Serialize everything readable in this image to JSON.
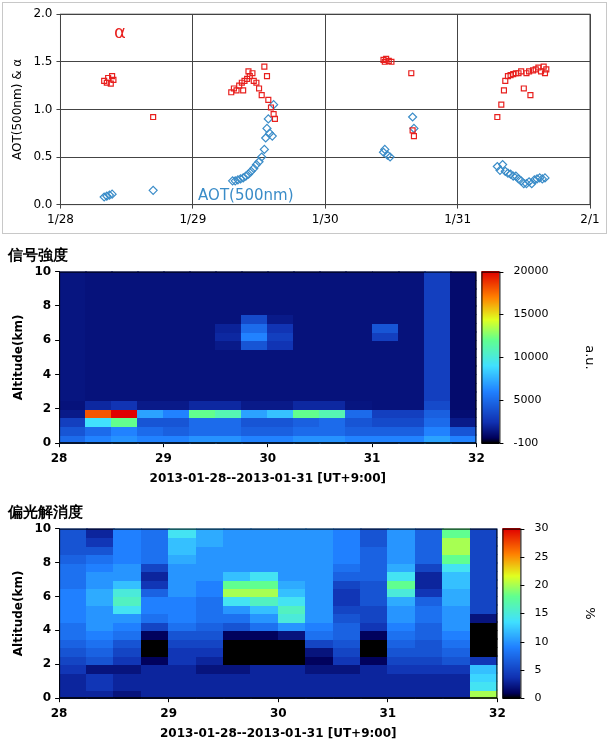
{
  "chart_data": [
    {
      "type": "scatter",
      "y_label": "AOT(500nm) & α",
      "xlim": [
        28,
        32
      ],
      "xticks": [
        {
          "value": 28,
          "label": "1/28"
        },
        {
          "value": 29,
          "label": "1/29"
        },
        {
          "value": 30,
          "label": "1/30"
        },
        {
          "value": 31,
          "label": "1/31"
        },
        {
          "value": 32,
          "label": "2/1"
        }
      ],
      "ylim": [
        0,
        2
      ],
      "yticks": [
        {
          "value": 0,
          "label": "0.0"
        },
        0.5,
        {
          "value": 1,
          "label": "1.0"
        },
        1.5,
        {
          "value": 2,
          "label": "2.0"
        }
      ],
      "grid": true,
      "annotations": [
        {
          "text": "α",
          "x": 28.45,
          "y": 1.8,
          "color": "#e8201e"
        },
        {
          "text": "AOT(500nm)",
          "x": 29.4,
          "y": 0.09,
          "color": "#3a8cc8"
        }
      ],
      "series": [
        {
          "name": "α",
          "color": "#e8201e",
          "marker": "square",
          "x": [
            28.33,
            28.35,
            28.36,
            28.38,
            28.39,
            28.4,
            28.7,
            29.29,
            29.31,
            29.33,
            29.35,
            29.37,
            29.38,
            29.39,
            29.41,
            29.42,
            29.43,
            29.45,
            29.46,
            29.48,
            29.5,
            29.52,
            29.54,
            29.56,
            29.57,
            29.59,
            29.61,
            29.62,
            30.44,
            30.45,
            30.46,
            30.48,
            30.5,
            30.65,
            30.66,
            30.67,
            31.3,
            31.33,
            31.35,
            31.36,
            31.38,
            31.4,
            31.42,
            31.44,
            31.46,
            31.48,
            31.5,
            31.52,
            31.54,
            31.55,
            31.57,
            31.59,
            31.61,
            31.63,
            31.65,
            31.66,
            31.67
          ],
          "values": [
            1.3,
            1.28,
            1.33,
            1.27,
            1.35,
            1.31,
            0.92,
            1.18,
            1.22,
            1.2,
            1.25,
            1.28,
            1.2,
            1.3,
            1.32,
            1.4,
            1.35,
            1.38,
            1.3,
            1.28,
            1.22,
            1.15,
            1.45,
            1.35,
            1.1,
            1.02,
            0.95,
            0.9,
            1.52,
            1.5,
            1.53,
            1.51,
            1.5,
            1.38,
            0.78,
            0.72,
            0.92,
            1.05,
            1.2,
            1.3,
            1.35,
            1.36,
            1.37,
            1.38,
            1.38,
            1.4,
            1.22,
            1.38,
            1.4,
            1.15,
            1.41,
            1.42,
            1.44,
            1.4,
            1.45,
            1.38,
            1.42
          ]
        },
        {
          "name": "AOT(500nm)",
          "color": "#3a8cc8",
          "marker": "diamond",
          "x": [
            28.33,
            28.35,
            28.37,
            28.39,
            28.7,
            29.3,
            29.32,
            29.34,
            29.36,
            29.38,
            29.4,
            29.42,
            29.44,
            29.46,
            29.48,
            29.5,
            29.52,
            29.54,
            29.55,
            29.56,
            29.57,
            29.58,
            29.6,
            29.61,
            30.44,
            30.45,
            30.47,
            30.49,
            30.66,
            30.67,
            31.3,
            31.32,
            31.34,
            31.36,
            31.38,
            31.4,
            31.42,
            31.44,
            31.46,
            31.48,
            31.5,
            31.52,
            31.54,
            31.56,
            31.58,
            31.6,
            31.62,
            31.64,
            31.66
          ],
          "values": [
            0.08,
            0.09,
            0.1,
            0.11,
            0.15,
            0.25,
            0.25,
            0.26,
            0.27,
            0.28,
            0.3,
            0.32,
            0.35,
            0.38,
            0.42,
            0.45,
            0.5,
            0.58,
            0.7,
            0.8,
            0.9,
            0.75,
            0.72,
            1.05,
            0.55,
            0.58,
            0.52,
            0.5,
            0.92,
            0.8,
            0.4,
            0.36,
            0.42,
            0.35,
            0.33,
            0.32,
            0.3,
            0.3,
            0.27,
            0.25,
            0.22,
            0.22,
            0.24,
            0.22,
            0.26,
            0.27,
            0.28,
            0.27,
            0.28
          ]
        }
      ]
    },
    {
      "type": "heatmap",
      "title": "信号強度",
      "x_label": "2013-01-28--2013-01-31 [UT+9:00]",
      "y_label": "Altitude(km)",
      "xlim": [
        28,
        32
      ],
      "xticks": [
        28,
        29,
        30,
        31,
        32
      ],
      "ylim": [
        0,
        10
      ],
      "yticks": [
        0,
        2,
        4,
        6,
        8,
        10
      ],
      "x_edges": [
        28,
        28.25,
        28.5,
        28.75,
        29,
        29.25,
        29.5,
        29.75,
        30,
        30.25,
        30.5,
        30.75,
        31,
        31.25,
        31.5,
        31.75,
        32
      ],
      "y_edges": [
        0,
        0.5,
        1,
        1.5,
        2,
        2.5,
        3,
        3.5,
        4,
        4.5,
        5,
        5.5,
        6,
        6.5,
        7,
        7.5,
        8,
        8.5,
        9,
        9.5,
        10
      ],
      "cells": [
        [
          5000,
          6000,
          6500,
          6000,
          6000,
          6500,
          6500,
          6000,
          6000,
          6500,
          6500,
          6000,
          6000,
          6000,
          7000,
          6000
        ],
        [
          4000,
          5000,
          6000,
          5000,
          4500,
          5000,
          5000,
          4500,
          4500,
          5000,
          5000,
          4500,
          4500,
          4500,
          6000,
          4000
        ],
        [
          3000,
          9000,
          12000,
          4000,
          4000,
          5000,
          5000,
          4000,
          4000,
          4500,
          5000,
          4000,
          3500,
          3500,
          5000,
          1500
        ],
        [
          1500,
          18000,
          20000,
          7000,
          6000,
          12000,
          11000,
          7000,
          8000,
          12000,
          11000,
          5000,
          3000,
          3000,
          4500,
          1000
        ],
        [
          1200,
          2000,
          2500,
          1500,
          1500,
          2000,
          2000,
          1500,
          1500,
          2000,
          2000,
          1300,
          1200,
          1200,
          3500,
          900
        ],
        [
          1300,
          1200,
          1200,
          1200,
          1200,
          1200,
          1200,
          1200,
          1200,
          1200,
          1200,
          1200,
          1200,
          1200,
          3000,
          900
        ],
        [
          1300,
          1200,
          1200,
          1200,
          1200,
          1200,
          1200,
          1200,
          1200,
          1200,
          1200,
          1200,
          1200,
          1200,
          3000,
          900
        ],
        [
          1300,
          1200,
          1200,
          1200,
          1200,
          1200,
          1200,
          1200,
          1200,
          1200,
          1200,
          1200,
          1200,
          1200,
          3000,
          900
        ],
        [
          1300,
          1200,
          1200,
          1200,
          1200,
          1200,
          1200,
          1200,
          1200,
          1200,
          1200,
          1200,
          1200,
          1200,
          3000,
          900
        ],
        [
          1300,
          1200,
          1200,
          1200,
          1200,
          1200,
          1200,
          1200,
          1200,
          1200,
          1200,
          1200,
          1200,
          1200,
          3000,
          900
        ],
        [
          1300,
          1200,
          1200,
          1200,
          1200,
          1200,
          1200,
          1200,
          1200,
          1200,
          1200,
          1200,
          1200,
          1200,
          3000,
          900
        ],
        [
          1300,
          1200,
          1200,
          1200,
          1200,
          1200,
          1500,
          4000,
          2500,
          1200,
          1200,
          1200,
          1200,
          1200,
          3000,
          900
        ],
        [
          1300,
          1200,
          1200,
          1200,
          1200,
          1200,
          2000,
          6000,
          3000,
          1200,
          1200,
          1200,
          3000,
          1200,
          3000,
          900
        ],
        [
          1300,
          1200,
          1200,
          1200,
          1200,
          1200,
          1800,
          5000,
          2500,
          1200,
          1200,
          1200,
          4000,
          1200,
          3000,
          900
        ],
        [
          1300,
          1200,
          1200,
          1200,
          1200,
          1200,
          1200,
          3500,
          1500,
          1200,
          1200,
          1200,
          1200,
          1200,
          3000,
          900
        ],
        [
          1300,
          1200,
          1200,
          1200,
          1200,
          1200,
          1200,
          1200,
          1200,
          1200,
          1200,
          1200,
          1200,
          1200,
          3000,
          900
        ],
        [
          1300,
          1200,
          1200,
          1200,
          1200,
          1200,
          1200,
          1200,
          1200,
          1200,
          1200,
          1200,
          1200,
          1200,
          3000,
          900
        ],
        [
          1300,
          1200,
          1200,
          1200,
          1200,
          1200,
          1200,
          1200,
          1200,
          1200,
          1200,
          1200,
          1200,
          1200,
          3000,
          900
        ],
        [
          1300,
          1200,
          1200,
          1200,
          1200,
          1200,
          1200,
          1200,
          1200,
          1200,
          1200,
          1200,
          1200,
          1200,
          3000,
          900
        ],
        [
          1300,
          1200,
          1200,
          1200,
          1200,
          1200,
          1200,
          1200,
          1200,
          1200,
          1200,
          1200,
          1200,
          1200,
          3000,
          900
        ]
      ],
      "colorbar": {
        "range": [
          -100,
          20000
        ],
        "ticks": [
          -100,
          5000,
          10000,
          15000,
          20000
        ],
        "label": "a.u."
      }
    },
    {
      "type": "heatmap",
      "title": "偏光解消度",
      "x_label": "2013-01-28--2013-01-31 [UT+9:00]",
      "y_label": "Altitude(km)",
      "xlim": [
        28,
        32
      ],
      "xticks": [
        28,
        29,
        30,
        31,
        32
      ],
      "ylim": [
        0,
        10
      ],
      "yticks": [
        0,
        2,
        4,
        6,
        8,
        10
      ],
      "x_edges": [
        28,
        28.25,
        28.5,
        28.75,
        29,
        29.25,
        29.5,
        29.75,
        30,
        30.25,
        30.5,
        30.75,
        31,
        31.25,
        31.5,
        31.75,
        32
      ],
      "y_edges": [
        0,
        0.5,
        1,
        1.5,
        2,
        2.5,
        3,
        3.5,
        4,
        4.5,
        5,
        5.5,
        6,
        6.5,
        7,
        7.5,
        8,
        8.5,
        9,
        9.5,
        10
      ],
      "cells": [
        [
          3,
          3,
          2,
          3,
          3,
          3,
          3,
          3,
          3,
          3,
          3,
          3,
          3,
          3,
          3,
          20
        ],
        [
          3,
          4,
          3,
          3,
          3,
          3,
          3,
          3,
          3,
          3,
          3,
          3,
          3,
          3,
          3,
          14
        ],
        [
          3,
          4,
          3,
          3,
          3,
          3,
          3,
          3,
          3,
          3,
          3,
          3,
          3,
          3,
          3,
          13
        ],
        [
          4,
          2,
          2,
          3,
          3,
          2,
          2,
          3,
          3,
          2,
          2,
          3,
          4,
          4,
          4,
          12
        ],
        [
          5,
          6,
          4,
          1,
          4,
          3,
          0,
          0,
          0,
          1,
          4,
          1,
          5,
          5,
          6,
          4
        ],
        [
          6,
          7,
          5,
          0,
          4,
          4,
          0,
          0,
          0,
          2,
          5,
          0,
          6,
          6,
          7,
          0
        ],
        [
          7,
          8,
          6,
          0,
          5,
          5,
          0,
          0,
          0,
          5,
          6,
          0,
          7,
          6,
          8,
          0
        ],
        [
          8,
          9,
          8,
          1,
          6,
          6,
          1,
          1,
          2,
          8,
          7,
          1,
          8,
          7,
          9,
          0
        ],
        [
          8,
          10,
          9,
          5,
          8,
          7,
          6,
          8,
          10,
          9,
          7,
          4,
          9,
          7,
          10,
          0
        ],
        [
          9,
          10,
          10,
          8,
          9,
          8,
          8,
          10,
          15,
          10,
          6,
          5,
          10,
          8,
          10,
          2
        ],
        [
          9,
          10,
          14,
          9,
          9,
          8,
          10,
          12,
          16,
          10,
          5,
          5,
          10,
          8,
          10,
          5
        ],
        [
          9,
          11,
          16,
          9,
          9,
          8,
          14,
          16,
          14,
          10,
          4,
          6,
          11,
          7,
          11,
          5
        ],
        [
          9,
          11,
          15,
          7,
          10,
          9,
          20,
          20,
          12,
          10,
          4,
          6,
          15,
          4,
          11,
          5
        ],
        [
          8,
          10,
          12,
          4,
          10,
          9,
          18,
          18,
          11,
          10,
          5,
          6,
          18,
          3,
          12,
          5
        ],
        [
          8,
          10,
          10,
          3,
          10,
          10,
          12,
          14,
          10,
          10,
          7,
          7,
          14,
          3,
          12,
          5
        ],
        [
          8,
          9,
          10,
          5,
          10,
          10,
          10,
          10,
          10,
          10,
          8,
          7,
          11,
          5,
          14,
          5
        ],
        [
          7,
          8,
          9,
          8,
          11,
          10,
          10,
          10,
          10,
          10,
          9,
          7,
          10,
          7,
          18,
          5
        ],
        [
          6,
          6,
          9,
          8,
          12,
          10,
          10,
          10,
          10,
          10,
          9,
          7,
          10,
          7,
          20,
          5
        ],
        [
          6,
          4,
          9,
          8,
          12,
          11,
          10,
          10,
          10,
          10,
          9,
          6,
          10,
          7,
          20,
          5
        ],
        [
          6,
          3,
          9,
          8,
          14,
          11,
          10,
          10,
          10,
          10,
          9,
          6,
          10,
          7,
          18,
          5
        ]
      ],
      "colorbar": {
        "range": [
          0,
          30
        ],
        "ticks": [
          0,
          5,
          10,
          15,
          20,
          25,
          30
        ],
        "label": "%"
      }
    }
  ]
}
